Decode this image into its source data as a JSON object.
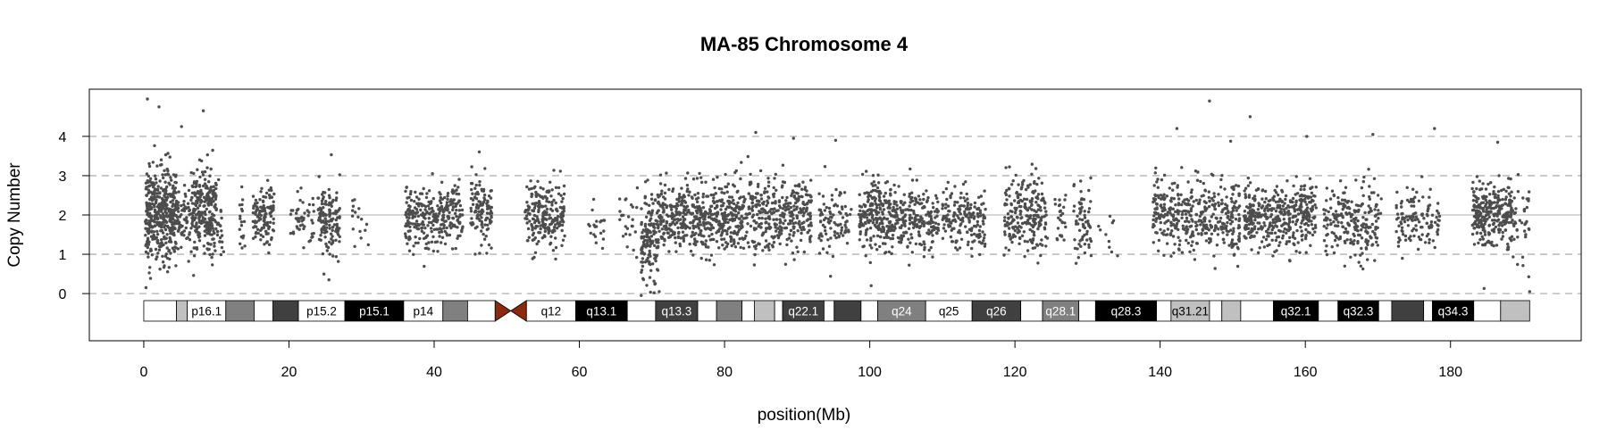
{
  "chart_data": {
    "type": "scatter",
    "title": "MA-85  Chromosome 4",
    "xlabel": "position(Mb)",
    "ylabel": "Copy Number",
    "xlim": [
      -7.5,
      198
    ],
    "ylim": [
      -1.2,
      5.2
    ],
    "x_ticks": [
      0,
      20,
      40,
      60,
      80,
      100,
      120,
      140,
      160,
      180
    ],
    "y_ticks": [
      0,
      1,
      2,
      3,
      4
    ],
    "dashed_gridlines_y": [
      0,
      1,
      3,
      4
    ],
    "solid_gridline_y": 2,
    "point_color": "#4d4d4d",
    "centromere_color": "#8b2a0e",
    "centromere_mb": [
      48.4,
      52.7
    ],
    "chromosome_end_mb": 190.9,
    "segments": [
      {
        "start": 0.2,
        "end": 4.5,
        "mean": 2.05,
        "sd": 0.55,
        "n": 420
      },
      {
        "start": 4.5,
        "end": 6.5,
        "mean": 1.95,
        "sd": 0.4,
        "n": 60
      },
      {
        "start": 6.5,
        "end": 10.0,
        "mean": 2.1,
        "sd": 0.55,
        "n": 260
      },
      {
        "start": 10.0,
        "end": 11.0,
        "mean": 1.8,
        "sd": 0.4,
        "n": 20
      },
      {
        "start": 13.2,
        "end": 14.0,
        "mean": 1.9,
        "sd": 0.35,
        "n": 18
      },
      {
        "start": 15.0,
        "end": 18.0,
        "mean": 1.95,
        "sd": 0.4,
        "n": 120
      },
      {
        "start": 20.0,
        "end": 23.5,
        "mean": 1.85,
        "sd": 0.35,
        "n": 50
      },
      {
        "start": 24.0,
        "end": 27.0,
        "mean": 1.95,
        "sd": 0.45,
        "n": 130
      },
      {
        "start": 28.5,
        "end": 31.0,
        "mean": 1.8,
        "sd": 0.35,
        "n": 16
      },
      {
        "start": 36.0,
        "end": 44.0,
        "mean": 1.95,
        "sd": 0.4,
        "n": 300
      },
      {
        "start": 45.0,
        "end": 48.0,
        "mean": 2.1,
        "sd": 0.45,
        "n": 120
      },
      {
        "start": 52.5,
        "end": 58.0,
        "mean": 1.95,
        "sd": 0.4,
        "n": 220
      },
      {
        "start": 61.0,
        "end": 63.5,
        "mean": 1.8,
        "sd": 0.4,
        "n": 20
      },
      {
        "start": 65.5,
        "end": 68.0,
        "mean": 1.8,
        "sd": 0.4,
        "n": 25
      },
      {
        "start": 68.5,
        "end": 71.0,
        "mean": 1.35,
        "sd": 0.55,
        "n": 150
      },
      {
        "start": 71.0,
        "end": 82.0,
        "mean": 1.95,
        "sd": 0.45,
        "n": 480
      },
      {
        "start": 82.0,
        "end": 92.0,
        "mean": 2.0,
        "sd": 0.45,
        "n": 380
      },
      {
        "start": 93.0,
        "end": 97.5,
        "mean": 1.8,
        "sd": 0.4,
        "n": 90
      },
      {
        "start": 98.5,
        "end": 103.5,
        "mean": 1.95,
        "sd": 0.45,
        "n": 230
      },
      {
        "start": 103.5,
        "end": 109.5,
        "mean": 1.9,
        "sd": 0.4,
        "n": 210
      },
      {
        "start": 110.0,
        "end": 116.0,
        "mean": 1.9,
        "sd": 0.4,
        "n": 170
      },
      {
        "start": 118.5,
        "end": 124.5,
        "mean": 2.0,
        "sd": 0.45,
        "n": 230
      },
      {
        "start": 125.5,
        "end": 127.0,
        "mean": 2.0,
        "sd": 0.35,
        "n": 25
      },
      {
        "start": 128.0,
        "end": 130.5,
        "mean": 1.9,
        "sd": 0.45,
        "n": 70
      },
      {
        "start": 131.5,
        "end": 134.5,
        "mean": 1.6,
        "sd": 0.35,
        "n": 10
      },
      {
        "start": 139.0,
        "end": 151.0,
        "mean": 1.95,
        "sd": 0.45,
        "n": 420
      },
      {
        "start": 151.5,
        "end": 161.5,
        "mean": 1.95,
        "sd": 0.4,
        "n": 400
      },
      {
        "start": 162.5,
        "end": 170.5,
        "mean": 1.85,
        "sd": 0.45,
        "n": 220
      },
      {
        "start": 172.5,
        "end": 178.5,
        "mean": 1.9,
        "sd": 0.4,
        "n": 120
      },
      {
        "start": 183.0,
        "end": 188.5,
        "mean": 2.05,
        "sd": 0.4,
        "n": 280
      },
      {
        "start": 188.5,
        "end": 190.9,
        "mean": 1.6,
        "sd": 0.5,
        "n": 40
      }
    ],
    "outliers": [
      [
        0.3,
        0.15
      ],
      [
        0.5,
        4.95
      ],
      [
        2.1,
        4.75
      ],
      [
        5.2,
        4.25
      ],
      [
        8.2,
        4.65
      ],
      [
        70.3,
        0.02
      ],
      [
        71.0,
        0.05
      ],
      [
        84.3,
        4.1
      ],
      [
        89.5,
        3.95
      ],
      [
        95.3,
        3.9
      ],
      [
        100.2,
        0.2
      ],
      [
        146.8,
        4.9
      ],
      [
        152.4,
        4.5
      ],
      [
        142.3,
        4.2
      ],
      [
        160.2,
        4.0
      ],
      [
        169.3,
        4.05
      ],
      [
        177.8,
        4.2
      ],
      [
        186.5,
        3.85
      ],
      [
        190.9,
        0.05
      ],
      [
        25.5,
        0.35
      ]
    ],
    "ideogram": {
      "bands": [
        {
          "start": 0,
          "end": 4.5,
          "stain": "white",
          "label": ""
        },
        {
          "start": 4.5,
          "end": 6.0,
          "stain": "lightgray",
          "label": ""
        },
        {
          "start": 6.0,
          "end": 11.3,
          "stain": "white",
          "label": "p16.1"
        },
        {
          "start": 11.3,
          "end": 15.2,
          "stain": "gray",
          "label": ""
        },
        {
          "start": 15.2,
          "end": 17.8,
          "stain": "white",
          "label": ""
        },
        {
          "start": 17.8,
          "end": 21.3,
          "stain": "darkgray",
          "label": ""
        },
        {
          "start": 21.3,
          "end": 27.7,
          "stain": "white",
          "label": "p15.2"
        },
        {
          "start": 27.7,
          "end": 35.8,
          "stain": "black",
          "label": "p15.1"
        },
        {
          "start": 35.8,
          "end": 41.2,
          "stain": "white",
          "label": "p14"
        },
        {
          "start": 41.2,
          "end": 44.6,
          "stain": "gray",
          "label": ""
        },
        {
          "start": 44.6,
          "end": 48.4,
          "stain": "white",
          "label": ""
        },
        {
          "start": 52.7,
          "end": 59.5,
          "stain": "white",
          "label": "q12"
        },
        {
          "start": 59.5,
          "end": 66.6,
          "stain": "black",
          "label": "q13.1"
        },
        {
          "start": 66.6,
          "end": 70.5,
          "stain": "white",
          "label": ""
        },
        {
          "start": 70.5,
          "end": 76.3,
          "stain": "darkgray",
          "label": "q13.3"
        },
        {
          "start": 76.3,
          "end": 78.9,
          "stain": "white",
          "label": ""
        },
        {
          "start": 78.9,
          "end": 82.4,
          "stain": "gray",
          "label": ""
        },
        {
          "start": 82.4,
          "end": 84.1,
          "stain": "white",
          "label": ""
        },
        {
          "start": 84.1,
          "end": 86.9,
          "stain": "lightgray",
          "label": ""
        },
        {
          "start": 86.9,
          "end": 88.0,
          "stain": "white",
          "label": ""
        },
        {
          "start": 88.0,
          "end": 93.7,
          "stain": "darkgray",
          "label": "q22.1"
        },
        {
          "start": 93.7,
          "end": 95.1,
          "stain": "white",
          "label": ""
        },
        {
          "start": 95.1,
          "end": 98.8,
          "stain": "darkgray",
          "label": ""
        },
        {
          "start": 98.8,
          "end": 101.1,
          "stain": "white",
          "label": ""
        },
        {
          "start": 101.1,
          "end": 107.7,
          "stain": "gray",
          "label": "q24"
        },
        {
          "start": 107.7,
          "end": 114.1,
          "stain": "white",
          "label": "q25"
        },
        {
          "start": 114.1,
          "end": 120.8,
          "stain": "darkgray",
          "label": "q26"
        },
        {
          "start": 120.8,
          "end": 123.8,
          "stain": "white",
          "label": ""
        },
        {
          "start": 123.8,
          "end": 128.8,
          "stain": "gray",
          "label": "q28.1"
        },
        {
          "start": 128.8,
          "end": 131.1,
          "stain": "white",
          "label": ""
        },
        {
          "start": 131.1,
          "end": 139.5,
          "stain": "black",
          "label": "q28.3"
        },
        {
          "start": 139.5,
          "end": 141.5,
          "stain": "white",
          "label": ""
        },
        {
          "start": 141.5,
          "end": 146.8,
          "stain": "lightgray",
          "label": "q31.21"
        },
        {
          "start": 146.8,
          "end": 148.5,
          "stain": "white",
          "label": ""
        },
        {
          "start": 148.5,
          "end": 151.1,
          "stain": "lightgray",
          "label": ""
        },
        {
          "start": 151.1,
          "end": 155.6,
          "stain": "white",
          "label": ""
        },
        {
          "start": 155.6,
          "end": 161.8,
          "stain": "black",
          "label": "q32.1"
        },
        {
          "start": 161.8,
          "end": 164.5,
          "stain": "white",
          "label": ""
        },
        {
          "start": 164.5,
          "end": 170.1,
          "stain": "black",
          "label": "q32.3"
        },
        {
          "start": 170.1,
          "end": 171.9,
          "stain": "white",
          "label": ""
        },
        {
          "start": 171.9,
          "end": 176.3,
          "stain": "darkgray",
          "label": ""
        },
        {
          "start": 176.3,
          "end": 177.5,
          "stain": "white",
          "label": ""
        },
        {
          "start": 177.5,
          "end": 183.2,
          "stain": "black",
          "label": "q34.3"
        },
        {
          "start": 183.2,
          "end": 186.9,
          "stain": "white",
          "label": ""
        },
        {
          "start": 186.9,
          "end": 190.9,
          "stain": "lightgray",
          "label": ""
        }
      ],
      "stain_colors": {
        "white": "#ffffff",
        "lightgray": "#c0c0c0",
        "gray": "#808080",
        "darkgray": "#404040",
        "black": "#000000"
      }
    }
  }
}
